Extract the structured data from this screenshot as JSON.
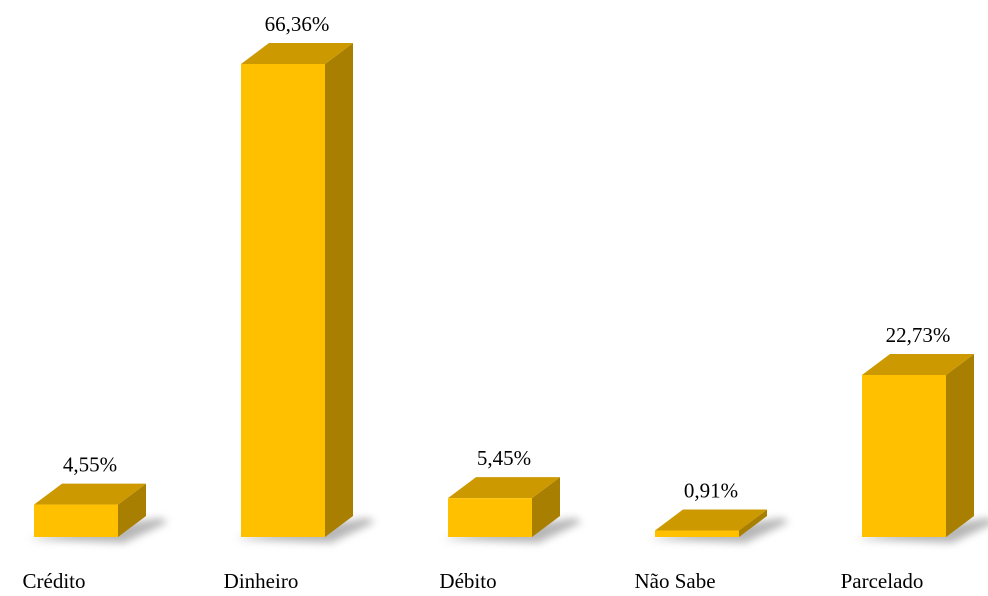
{
  "chart_data": {
    "type": "bar3d",
    "categories": [
      "Crédito",
      "Dinheiro",
      "Débito",
      "Não Sabe",
      "Parcelado"
    ],
    "values": [
      4.55,
      66.36,
      5.45,
      0.91,
      22.73
    ],
    "value_labels": [
      "4,55%",
      "66,36%",
      "5,45%",
      "0,91%",
      "22,73%"
    ],
    "color": "#ffc000"
  }
}
